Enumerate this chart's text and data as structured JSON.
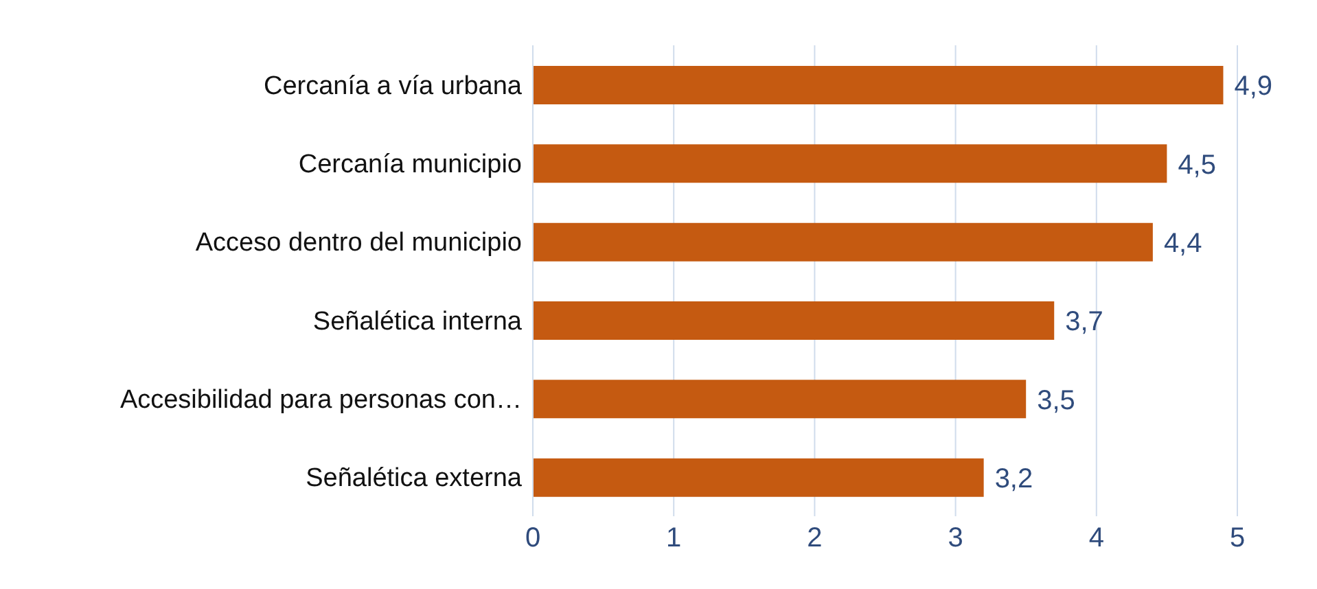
{
  "chart_data": {
    "type": "bar",
    "orientation": "horizontal",
    "categories": [
      "Cercanía a vía urbana",
      "Cercanía municipio",
      "Acceso dentro del municipio",
      "Señalética interna",
      "Accesibilidad para personas con…",
      "Señalética externa"
    ],
    "values": [
      4.9,
      4.5,
      4.4,
      3.7,
      3.5,
      3.2
    ],
    "value_labels": [
      "4,9",
      "4,5",
      "4,4",
      "3,7",
      "3,5",
      "3,2"
    ],
    "color": "#c55a11",
    "xlim": [
      0,
      5
    ],
    "xticks": [
      0,
      1,
      2,
      3,
      4,
      5
    ],
    "grid": "x"
  }
}
